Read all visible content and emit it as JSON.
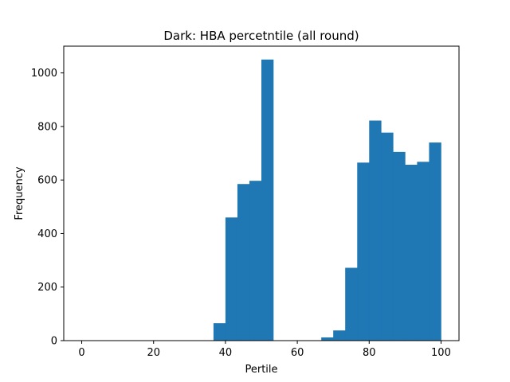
{
  "chart_data": {
    "type": "bar",
    "title": "Dark: HBA percetntile (all round)",
    "xlabel": "Pertile",
    "ylabel": "Frequency",
    "xlim": [
      -5,
      105
    ],
    "ylim": [
      0,
      1100
    ],
    "xticks": [
      "0",
      "20",
      "40",
      "60",
      "80",
      "100"
    ],
    "yticks": [
      "0",
      "200",
      "400",
      "600",
      "800",
      "1000"
    ],
    "bar_color": "#1f77b4",
    "bin_width": 3.33,
    "bins": [
      {
        "x0": 36.67,
        "value": 65
      },
      {
        "x0": 40.0,
        "value": 460
      },
      {
        "x0": 43.33,
        "value": 585
      },
      {
        "x0": 46.67,
        "value": 597
      },
      {
        "x0": 50.0,
        "value": 1050
      },
      {
        "x0": 66.67,
        "value": 12
      },
      {
        "x0": 70.0,
        "value": 38
      },
      {
        "x0": 73.33,
        "value": 272
      },
      {
        "x0": 76.67,
        "value": 665
      },
      {
        "x0": 80.0,
        "value": 822
      },
      {
        "x0": 83.33,
        "value": 777
      },
      {
        "x0": 86.67,
        "value": 705
      },
      {
        "x0": 90.0,
        "value": 657
      },
      {
        "x0": 93.33,
        "value": 668
      },
      {
        "x0": 96.67,
        "value": 740
      }
    ]
  }
}
